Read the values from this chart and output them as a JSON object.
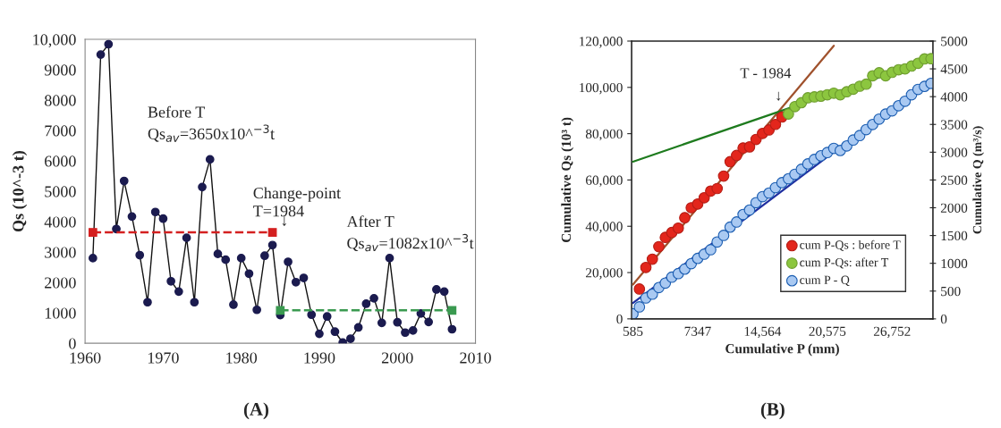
{
  "chart_data": [
    {
      "type": "line",
      "title": "(A)",
      "ylabel": "Qs (10^-3 t)",
      "xlim": [
        1960,
        2010
      ],
      "xticks": [
        1960,
        1970,
        1980,
        1990,
        2000,
        2010
      ],
      "ylim": [
        0,
        10000
      ],
      "yticks": [
        0,
        1000,
        2000,
        3000,
        4000,
        5000,
        6000,
        7000,
        8000,
        9000,
        {
          "value": 10000,
          "label": "10,000"
        }
      ],
      "grid": false,
      "legend": false,
      "marker": "circle",
      "x": [
        1961,
        1962,
        1963,
        1964,
        1965,
        1966,
        1967,
        1968,
        1969,
        1970,
        1971,
        1972,
        1973,
        1974,
        1975,
        1976,
        1977,
        1978,
        1979,
        1980,
        1981,
        1982,
        1983,
        1984,
        1985,
        1986,
        1987,
        1988,
        1989,
        1990,
        1991,
        1992,
        1993,
        1994,
        1995,
        1996,
        1997,
        1998,
        1999,
        2000,
        2001,
        2002,
        2003,
        2004,
        2005,
        2006,
        2007
      ],
      "series": [
        {
          "color": "#1b1b4f",
          "values": [
            2800,
            9500,
            9840,
            3760,
            5340,
            4170,
            2900,
            1350,
            4320,
            4100,
            2040,
            1700,
            3470,
            1350,
            5140,
            6050,
            2940,
            2750,
            1270,
            2800,
            2290,
            1100,
            2880,
            3230,
            930,
            2680,
            2010,
            2150,
            940,
            310,
            880,
            380,
            20,
            150,
            520,
            1300,
            1480,
            670,
            2800,
            690,
            350,
            420,
            980,
            700,
            1770,
            1700,
            460
          ]
        },
        {
          "color": "#d42020",
          "x": [
            1961,
            1984
          ],
          "values": [
            3650,
            3650
          ],
          "line_style": "dashed",
          "marker": "square"
        },
        {
          "color": "#3a9a50",
          "x": [
            1985,
            2007
          ],
          "values": [
            1082,
            1082
          ],
          "line_style": "dashed",
          "marker": "square"
        }
      ],
      "annotations": [
        "Before T\nQs$_{av}$=3650x10^$^{−3}$t",
        "Change-point\nT=1984",
        "↓",
        "After T\nQs$_{av}$=1082x10^$^{−3}$t"
      ]
    },
    {
      "type": "scatter",
      "title": "(B)",
      "xlabel": "Cumulative P (mm)",
      "ylabel": "Cumulative Qs (10³ t)",
      "y2label": "Cumulative Q (m³/s)",
      "categories": [
        "585",
        null,
        null,
        null,
        null,
        null,
        null,
        null,
        null,
        null,
        "7347",
        null,
        null,
        null,
        null,
        null,
        null,
        null,
        null,
        null,
        "14,564",
        null,
        null,
        null,
        null,
        null,
        null,
        null,
        null,
        null,
        "20,575",
        null,
        null,
        null,
        null,
        null,
        null,
        null,
        null,
        null,
        "26,752",
        null,
        null,
        null,
        null,
        null,
        null
      ],
      "ylim": [
        0,
        120000
      ],
      "yticks": [
        0,
        {
          "value": 20000,
          "label": "20,000"
        },
        {
          "value": 40000,
          "label": "40,000"
        },
        {
          "value": 60000,
          "label": "60,000"
        },
        {
          "value": 80000,
          "label": "80,000"
        },
        {
          "value": 100000,
          "label": "100,000"
        },
        {
          "value": 120000,
          "label": "120,000"
        }
      ],
      "y2lim": [
        0,
        5000
      ],
      "y2ticks": [
        0,
        500,
        1000,
        1500,
        2000,
        2500,
        3000,
        3500,
        4000,
        4500,
        5000
      ],
      "grid": false,
      "legend": "bottom right",
      "marker": "circle",
      "series": [
        {
          "name": "cum P-Qs : before T",
          "color": "#e3261c",
          "values": [
            null,
            12900,
            22200,
            25800,
            31200,
            35200,
            37300,
            39200,
            43700,
            48000,
            49600,
            52300,
            55200,
            56300,
            61700,
            67900,
            70600,
            73800,
            74300,
            77500,
            80100,
            81600,
            84000,
            87200,
            null,
            null,
            null,
            null,
            null,
            null,
            null,
            null,
            null,
            null,
            null,
            null,
            null,
            null,
            null,
            null,
            null,
            null,
            null,
            null,
            null,
            null,
            null
          ]
        },
        {
          "name": "cum P-Qs: after T",
          "color": "#8cc63f",
          "values": [
            null,
            null,
            null,
            null,
            null,
            null,
            null,
            null,
            null,
            null,
            null,
            null,
            null,
            null,
            null,
            null,
            null,
            null,
            null,
            null,
            null,
            null,
            null,
            null,
            88500,
            91700,
            93400,
            95500,
            95900,
            96200,
            96800,
            97500,
            96800,
            98100,
            99200,
            100500,
            101400,
            105000,
            106300,
            105000,
            106500,
            107600,
            108000,
            109200,
            110400,
            112300,
            112400
          ]
        },
        {
          "name": "cum P - Q",
          "color": "#a9c9f2",
          "axis": "y2",
          "values": [
            91,
            215,
            376,
            445,
            563,
            644,
            751,
            815,
            896,
            993,
            1089,
            1164,
            1245,
            1384,
            1502,
            1652,
            1744,
            1878,
            1958,
            2092,
            2200,
            2264,
            2361,
            2452,
            2521,
            2602,
            2693,
            2790,
            2870,
            2935,
            2994,
            3069,
            3031,
            3112,
            3219,
            3300,
            3407,
            3498,
            3595,
            3686,
            3745,
            3836,
            3917,
            4034,
            4131,
            4185,
            4238
          ]
        },
        {
          "type": "line",
          "color": "#a0522d",
          "marker": "none",
          "values": [
            14800,
            null,
            null,
            null,
            null,
            null,
            null,
            null,
            null,
            null,
            null,
            null,
            null,
            null,
            null,
            null,
            null,
            null,
            null,
            null,
            null,
            null,
            null,
            null,
            null,
            null,
            null,
            null,
            null,
            null,
            null,
            118000,
            null,
            null,
            null,
            null,
            null,
            null,
            null,
            null,
            null,
            null,
            null,
            null,
            null,
            null,
            null
          ]
        },
        {
          "type": "line",
          "color": "#1e7b1e",
          "marker": "none",
          "values": [
            67900,
            null,
            null,
            null,
            null,
            null,
            null,
            null,
            null,
            null,
            null,
            null,
            null,
            null,
            null,
            null,
            null,
            null,
            null,
            null,
            null,
            null,
            null,
            null,
            null,
            null,
            null,
            null,
            null,
            null,
            null,
            null,
            null,
            null,
            null,
            null,
            null,
            null,
            null,
            null,
            null,
            null,
            null,
            null,
            null,
            null,
            112000
          ]
        },
        {
          "type": "line",
          "color": "#1f2fa0",
          "marker": "none",
          "axis": "y2",
          "values": [
            284,
            null,
            null,
            null,
            null,
            null,
            null,
            null,
            null,
            null,
            null,
            null,
            null,
            null,
            null,
            null,
            null,
            null,
            null,
            null,
            null,
            null,
            null,
            null,
            null,
            null,
            null,
            null,
            null,
            null,
            null,
            null,
            null,
            null,
            null,
            null,
            null,
            null,
            null,
            null,
            null,
            null,
            null,
            null,
            null,
            null,
            4319
          ]
        }
      ],
      "annotations": [
        "T - 1984",
        "↓"
      ]
    }
  ]
}
